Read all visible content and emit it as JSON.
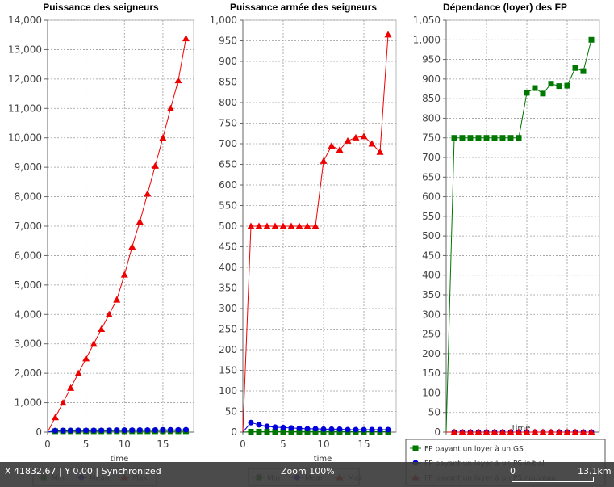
{
  "charts": [
    {
      "title": "Puissance des seigneurs",
      "xlabel": "time",
      "chart_data": {
        "type": "line",
        "title": "Puissance des seigneurs",
        "xlabel": "time",
        "ylabel": "",
        "xlim": [
          0,
          19
        ],
        "ylim": [
          0,
          14000
        ],
        "xticks": [
          0,
          5,
          10,
          15
        ],
        "yticks": [
          0,
          1000,
          2000,
          3000,
          4000,
          5000,
          6000,
          7000,
          8000,
          9000,
          10000,
          11000,
          12000,
          13000,
          14000
        ],
        "x": [
          1,
          2,
          3,
          4,
          5,
          6,
          7,
          8,
          9,
          10,
          11,
          12,
          13,
          14,
          15,
          16,
          17,
          18
        ],
        "series": [
          {
            "name": "Min",
            "color": "#007700",
            "marker": "square",
            "values": [
              30,
              30,
              30,
              30,
              30,
              30,
              30,
              30,
              30,
              30,
              30,
              30,
              30,
              30,
              30,
              30,
              30,
              30
            ]
          },
          {
            "name": "Mean",
            "color": "#0000dd",
            "marker": "circle",
            "values": [
              50,
              55,
              55,
              60,
              60,
              60,
              60,
              60,
              65,
              65,
              65,
              70,
              70,
              70,
              75,
              75,
              75,
              80
            ]
          },
          {
            "name": "Max",
            "color": "#ee0000",
            "marker": "triangle",
            "values": [
              500,
              1000,
              1500,
              2000,
              2500,
              3000,
              3500,
              4000,
              4500,
              5350,
              6300,
              7150,
              8100,
              9050,
              10000,
              11000,
              11950,
              13380
            ]
          }
        ]
      },
      "legend": [
        "Min",
        "Mean",
        "Max"
      ]
    },
    {
      "title": "Puissance armée des seigneurs",
      "xlabel": "time",
      "chart_data": {
        "type": "line",
        "title": "Puissance armée des seigneurs",
        "xlabel": "time",
        "ylabel": "",
        "xlim": [
          0,
          19
        ],
        "ylim": [
          0,
          1000
        ],
        "xticks": [
          0,
          5,
          10,
          15
        ],
        "yticks": [
          0,
          50,
          100,
          150,
          200,
          250,
          300,
          350,
          400,
          450,
          500,
          550,
          600,
          650,
          700,
          750,
          800,
          850,
          900,
          950,
          1000
        ],
        "x": [
          1,
          2,
          3,
          4,
          5,
          6,
          7,
          8,
          9,
          10,
          11,
          12,
          13,
          14,
          15,
          16,
          17,
          18
        ],
        "series": [
          {
            "name": "Min",
            "color": "#007700",
            "marker": "square",
            "values": [
              1,
              1,
              1,
              1,
              1,
              1,
              1,
              1,
              1,
              1,
              1,
              1,
              1,
              1,
              1,
              1,
              1,
              1
            ]
          },
          {
            "name": "Mean",
            "color": "#0000dd",
            "marker": "circle",
            "values": [
              23,
              18,
              14,
              12,
              11,
              10,
              9,
              8,
              8,
              7,
              7,
              7,
              6,
              6,
              6,
              6,
              6,
              6
            ]
          },
          {
            "name": "Max",
            "color": "#ee0000",
            "marker": "triangle",
            "values": [
              500,
              500,
              500,
              500,
              500,
              500,
              500,
              500,
              500,
              658,
              695,
              685,
              707,
              715,
              718,
              700,
              680,
              965
            ]
          }
        ]
      },
      "legend": [
        "Min",
        "Mean",
        "Max"
      ]
    },
    {
      "title": "Dépendance (loyer) des FP",
      "xlabel": "time",
      "chart_data": {
        "type": "line",
        "title": "Dépendance (loyer) des FP",
        "xlabel": "time",
        "ylabel": "",
        "xlim": [
          0,
          19
        ],
        "ylim": [
          0,
          1050
        ],
        "xticks": [
          0,
          5,
          10,
          15
        ],
        "yticks": [
          0,
          50,
          100,
          150,
          200,
          250,
          300,
          350,
          400,
          450,
          500,
          550,
          600,
          650,
          700,
          750,
          800,
          850,
          900,
          950,
          1000,
          1050
        ],
        "x": [
          1,
          2,
          3,
          4,
          5,
          6,
          7,
          8,
          9,
          10,
          11,
          12,
          13,
          14,
          15,
          16,
          17,
          18
        ],
        "series": [
          {
            "name": "FP payant un loyer à un GS",
            "color": "#007700",
            "marker": "square",
            "values": [
              750,
              750,
              750,
              750,
              750,
              750,
              750,
              750,
              750,
              865,
              877,
              863,
              888,
              882,
              883,
              928,
              920,
              1000
            ]
          },
          {
            "name": "FP payant un loyer à un PS initial",
            "color": "#0000dd",
            "marker": "circle",
            "values": [
              0,
              0,
              0,
              0,
              0,
              0,
              0,
              0,
              0,
              0,
              0,
              0,
              0,
              0,
              0,
              0,
              0,
              0
            ]
          },
          {
            "name": "FP payant un loyer à un PS nouveau",
            "color": "#ee0000",
            "marker": "triangle",
            "values": [
              0,
              0,
              0,
              0,
              0,
              0,
              0,
              0,
              0,
              0,
              0,
              0,
              0,
              0,
              0,
              0,
              0,
              0
            ]
          }
        ]
      },
      "legend": [
        "FP payant un loyer à un GS",
        "FP payant un loyer à un PS initial",
        "FP payant un loyer à un PS nouveau"
      ]
    }
  ],
  "statusbar": {
    "coords": "X  41832.67 | Y     0.00 | Synchronized",
    "zoom": "Zoom 100%",
    "scale_start": "0",
    "scale_end": "13.1km"
  }
}
